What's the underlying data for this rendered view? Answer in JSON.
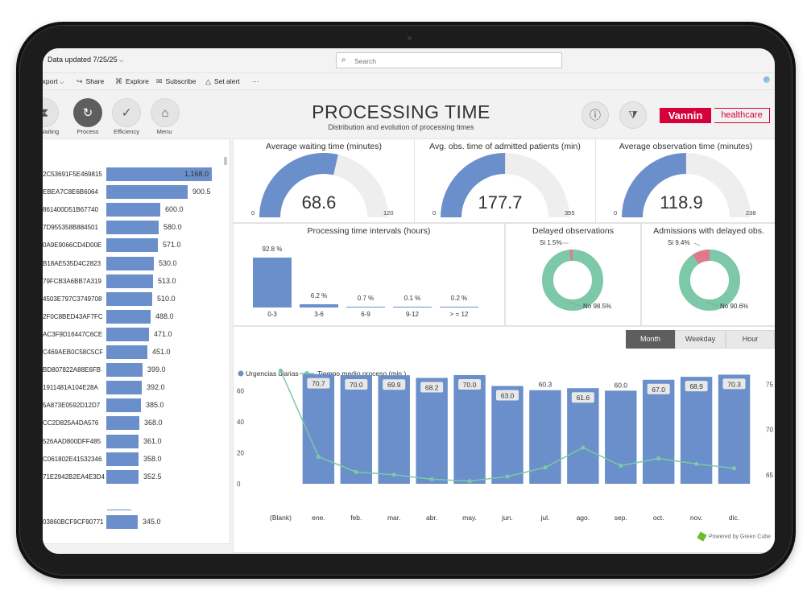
{
  "app": {
    "data_updated": "Data updated 7/25/25",
    "search_placeholder": "Search"
  },
  "toolbar": {
    "export": "Export",
    "share": "Share",
    "explore": "Explore",
    "subscribe": "Subscribe",
    "set_alert": "Set alert",
    "more": "···"
  },
  "nav": {
    "waiting": "Waiting",
    "process": "Process",
    "efficiency": "Efficiency",
    "menu": "Menu"
  },
  "header": {
    "title": "PROCESSING TIME",
    "subtitle": "Distribution and evolution of processing times",
    "logo_brand": "Vannin",
    "logo_sub": "healthcare"
  },
  "patients": {
    "rows": [
      {
        "id": "2C53691F5E469815",
        "value": 1168.0,
        "label": "1,168.0"
      },
      {
        "id": "EBEA7C8E6B6064",
        "value": 900.5,
        "label": "900.5"
      },
      {
        "id": "861400D51B67740",
        "value": 600.0,
        "label": "600.0"
      },
      {
        "id": "7D955358B884501",
        "value": 580.0,
        "label": "580.0"
      },
      {
        "id": "0A9E9066CD4D00E",
        "value": 571.0,
        "label": "571.0"
      },
      {
        "id": "B18AE535D4C2823",
        "value": 530.0,
        "label": "530.0"
      },
      {
        "id": "79FCB3A6BB7A319",
        "value": 513.0,
        "label": "513.0"
      },
      {
        "id": "4503E797C3749708",
        "value": 510.0,
        "label": "510.0"
      },
      {
        "id": "2F0C8BED43AF7FC",
        "value": 488.0,
        "label": "488.0"
      },
      {
        "id": "AC3F9D16447C6CE",
        "value": 471.0,
        "label": "471.0"
      },
      {
        "id": "C469AEB0C58C5CF",
        "value": 451.0,
        "label": "451.0"
      },
      {
        "id": "BD807822A88E6FB",
        "value": 399.0,
        "label": "399.0"
      },
      {
        "id": "1911481A104E28A",
        "value": 392.0,
        "label": "392.0"
      },
      {
        "id": "5A873E0592D12D7",
        "value": 385.0,
        "label": "385.0"
      },
      {
        "id": "CC2D825A4DA576",
        "value": 368.0,
        "label": "368.0"
      },
      {
        "id": "526AAD800DFF485",
        "value": 361.0,
        "label": "361.0"
      },
      {
        "id": "C061802E41532346",
        "value": 358.0,
        "label": "358.0"
      },
      {
        "id": "71E2942B2EA4E3D4",
        "value": 352.5,
        "label": "352.5"
      },
      {
        "id": "03860BCF9CF90771",
        "value": 345.0,
        "label": "345.0"
      }
    ]
  },
  "gauges": [
    {
      "title": "Average waiting time (minutes)",
      "value": 68.6,
      "label": "68.6",
      "min": "0",
      "max": "120",
      "max_num": 120
    },
    {
      "title": "Avg. obs. time of admitted patients (min)",
      "value": 177.7,
      "label": "177.7",
      "min": "0",
      "max": "355",
      "max_num": 355
    },
    {
      "title": "Average observation time (minutes)",
      "value": 118.9,
      "label": "118.9",
      "min": "0",
      "max": "238",
      "max_num": 238
    }
  ],
  "intervals": {
    "title": "Processing time intervals (hours)",
    "categories": [
      "0-3",
      "3-6",
      "6-9",
      "9-12",
      "> = 12"
    ],
    "values": [
      92.8,
      6.2,
      0.7,
      0.1,
      0.2
    ],
    "labels": [
      "92.8 %",
      "6.2 %",
      "0.7 %",
      "0.1 %",
      "0.2 %"
    ]
  },
  "donuts": [
    {
      "title": "Delayed observations",
      "yes_label": "Si 1.5%",
      "no_label": "No 98.5%",
      "yes": 1.5,
      "no": 98.5
    },
    {
      "title": "Admissions with delayed obs.",
      "yes_label": "Si 9.4%",
      "no_label": "No 90.6%",
      "yes": 9.4,
      "no": 90.6
    }
  ],
  "tabs": {
    "month": "Month",
    "weekday": "Weekday",
    "hour": "Hour"
  },
  "powered_by": "Powered by Green Cube",
  "colors": {
    "bar": "#6a8fca",
    "line": "#7dc8a8",
    "gauge_bg": "#eeeeee",
    "donut_no": "#7dc8a8",
    "donut_yes": "#e07a8a",
    "brand": "#d6003a"
  },
  "chart_data": {
    "type": "bar",
    "categories": [
      "(Blank)",
      "ene.",
      "feb.",
      "mar.",
      "abr.",
      "may.",
      "jun.",
      "jul.",
      "ago.",
      "sep.",
      "oct.",
      "nov.",
      "dic."
    ],
    "series": [
      {
        "name": "Urgencias diarias",
        "type": "bar",
        "values": [
          null,
          70.7,
          70.0,
          69.9,
          68.2,
          70.0,
          63.0,
          60.3,
          61.6,
          60.0,
          67.0,
          68.9,
          70.3
        ]
      },
      {
        "name": "Tiempo medio proceso (min.)",
        "type": "line",
        "axis": "right",
        "values": [
          76.5,
          67.0,
          65.3,
          65.0,
          64.5,
          64.3,
          64.8,
          65.8,
          68.0,
          66.0,
          66.8,
          66.2,
          65.7
        ]
      }
    ],
    "labels": [
      "",
      "70.7",
      "70.0",
      "69.9",
      "68.2",
      "70.0",
      "63.0",
      "60.3",
      "61.6",
      "60.0",
      "67.0",
      "68.9",
      "70.3"
    ],
    "left_ticks": [
      "0",
      "20",
      "40",
      "60"
    ],
    "right_ticks": [
      "65",
      "70",
      "75"
    ],
    "ylim": [
      0,
      70
    ],
    "y2lim": [
      64,
      76
    ]
  }
}
